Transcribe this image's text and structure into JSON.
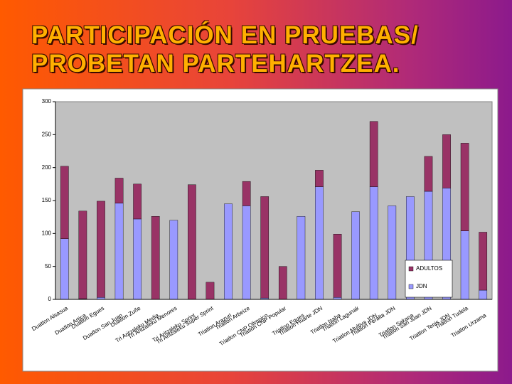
{
  "chart_data": {
    "type": "stacked_bar",
    "title": "PARTICIPACIÓN EN PRUEBAS/\nPROBETAN PARTEHARTZEA.",
    "categories": [
      "Duatlon Alsasua",
      "Duatlon Artica",
      "Duatlon Egues",
      "Duatlon San Juan",
      "Duatlon Zuñe",
      "Tri Aritzaleku Media",
      "Tri Aritzaleku Menores",
      "Tri Aritzaleku Sprint",
      "Tri Aritzaleku Super Sprint",
      "Triatlon Arazuri",
      "Triatlon Arbeize",
      "Triatlon CNP Olimpico",
      "Triatlon CNP Popular",
      "Triatlon Egues",
      "Triatlon Huarte JDN",
      "Triatlon Isaba",
      "Triatlon Lagunak",
      "Triatlon Multiva JDN",
      "Triatlon Peralta JDN",
      "Triatlon Sakana",
      "Triatlon San Juan JDN",
      "Triatlon Tenis JDN",
      "Triatlon Tudela",
      "Triatlon Urzama"
    ],
    "series": [
      {
        "name": "ADULTOS",
        "color": "#993366",
        "values": [
          110,
          133,
          146,
          38,
          53,
          126,
          0,
          174,
          26,
          0,
          37,
          154,
          50,
          0,
          25,
          96,
          0,
          99,
          0,
          0,
          53,
          81,
          133,
          88
        ]
      },
      {
        "name": "JDN",
        "color": "#9999ff",
        "values": [
          92,
          1,
          3,
          146,
          122,
          0,
          120,
          0,
          0,
          145,
          142,
          2,
          0,
          126,
          171,
          3,
          133,
          171,
          142,
          156,
          164,
          169,
          104,
          14
        ]
      }
    ],
    "ylim": [
      0,
      300
    ],
    "yticks": [
      0,
      50,
      100,
      150,
      200,
      250,
      300
    ],
    "grid": false,
    "legend": "lower right"
  }
}
